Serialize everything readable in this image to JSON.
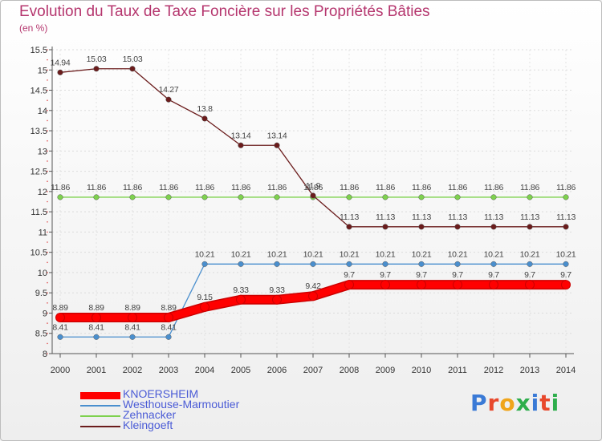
{
  "title": "Evolution du Taux de Taxe Foncière sur les Propriétés Bâties",
  "subtitle": "(en %)",
  "logo": {
    "text": "Proxiti",
    "colors": [
      "#3a7ad6",
      "#e8482c",
      "#f0a51b",
      "#2eae4c",
      "#3a7ad6",
      "#e8482c",
      "#2eae4c"
    ]
  },
  "colors": {
    "title": "#b5366e",
    "axis": "#444444",
    "legend_text": "#4a5bd6",
    "grid": "#d6d6d6"
  },
  "chart_data": {
    "type": "line",
    "title": "Evolution du Taux de Taxe Foncière sur les Propriétés Bâties",
    "ylabel": "(en %)",
    "xlabel": "",
    "ylim": [
      8,
      15.5
    ],
    "y_ticks": [
      "8",
      "8.5",
      "9",
      "9.5",
      "10",
      "10.5",
      "11",
      "11.5",
      "12",
      "12.5",
      "13",
      "13.5",
      "14",
      "14.5",
      "15",
      "15.5"
    ],
    "y_tick_values": [
      8,
      8.5,
      9,
      9.5,
      10,
      10.5,
      11,
      11.5,
      12,
      12.5,
      13,
      13.5,
      14,
      14.5,
      15,
      15.5
    ],
    "categories": [
      "2000",
      "2001",
      "2002",
      "2003",
      "2004",
      "2005",
      "2006",
      "2007",
      "2008",
      "2009",
      "2010",
      "2011",
      "2012",
      "2013",
      "2014"
    ],
    "legend_position": "bottom-left",
    "series": [
      {
        "name": "KNOERSHEIM",
        "color": "#ff0000",
        "thick": true,
        "values": [
          8.89,
          8.89,
          8.89,
          8.89,
          9.15,
          9.33,
          9.33,
          9.42,
          9.7,
          9.7,
          9.7,
          9.7,
          9.7,
          9.7,
          9.7
        ],
        "labels": [
          "8.89",
          "8.89",
          "8.89",
          "8.89",
          "9.15",
          "9.33",
          "9.33",
          "9.42",
          "9.7",
          "9.7",
          "9.7",
          "9.7",
          "9.7",
          "9.7",
          "9.7"
        ]
      },
      {
        "name": "Westhouse-Marmoutier",
        "color": "#4a8fce",
        "thick": false,
        "values": [
          8.41,
          8.41,
          8.41,
          8.41,
          10.21,
          10.21,
          10.21,
          10.21,
          10.21,
          10.21,
          10.21,
          10.21,
          10.21,
          10.21,
          10.21
        ],
        "labels": [
          "8.41",
          "8.41",
          "8.41",
          "8.41",
          "10.21",
          "10.21",
          "10.21",
          "10.21",
          "10.21",
          "10.21",
          "10.21",
          "10.21",
          "10.21",
          "10.21",
          "10.21"
        ]
      },
      {
        "name": "Zehnacker",
        "color": "#7ed14e",
        "thick": false,
        "values": [
          11.86,
          11.86,
          11.86,
          11.86,
          11.86,
          11.86,
          11.86,
          11.86,
          11.86,
          11.86,
          11.86,
          11.86,
          11.86,
          11.86,
          11.86
        ],
        "labels": [
          "11.86",
          "11.86",
          "11.86",
          "11.86",
          "11.86",
          "11.86",
          "11.86",
          "11.86",
          "11.86",
          "11.86",
          "11.86",
          "11.86",
          "11.86",
          "11.86",
          "11.86"
        ]
      },
      {
        "name": "Kleingoeft",
        "color": "#6b1c1c",
        "thick": false,
        "values": [
          14.94,
          15.03,
          15.03,
          14.27,
          13.8,
          13.14,
          13.14,
          11.9,
          11.13,
          11.13,
          11.13,
          11.13,
          11.13,
          11.13,
          11.13
        ],
        "labels": [
          "14.94",
          "15.03",
          "15.03",
          "14.27",
          "13.8",
          "13.14",
          "13.14",
          "11.9",
          "11.13",
          "11.13",
          "11.13",
          "11.13",
          "11.13",
          "11.13",
          "11.13"
        ]
      }
    ]
  }
}
